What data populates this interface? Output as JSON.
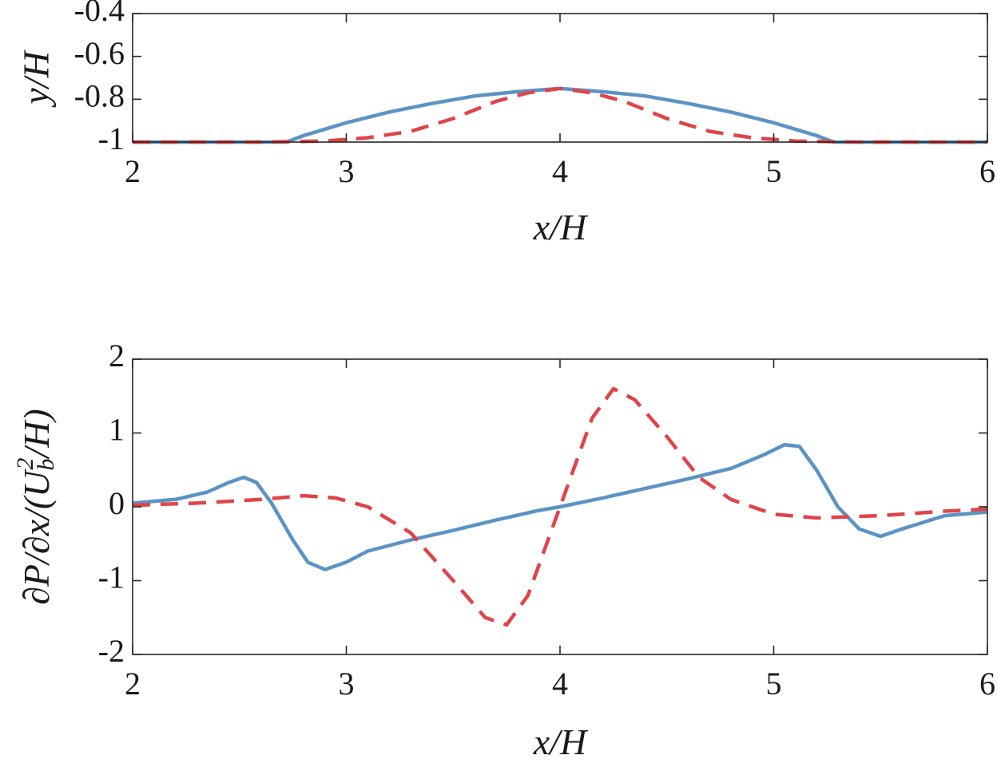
{
  "chart_data": [
    {
      "type": "line",
      "title": "",
      "xlabel": "x/H",
      "ylabel": "y/H",
      "xlim": [
        2,
        6
      ],
      "ylim": [
        -1,
        -0.4
      ],
      "xticks": [
        "2",
        "3",
        "4",
        "5",
        "6"
      ],
      "yticks": [
        "-1",
        "-0.8",
        "-0.6",
        "-0.4"
      ],
      "grid": false,
      "legend": "none",
      "series": [
        {
          "color": "#5b93c4",
          "style": "solid",
          "x": [
            2.0,
            2.5,
            2.72,
            2.8,
            3.0,
            3.2,
            3.4,
            3.6,
            3.8,
            4.0,
            4.2,
            4.4,
            4.6,
            4.8,
            5.0,
            5.2,
            5.28,
            5.5,
            6.0
          ],
          "y": [
            -1.0,
            -1.0,
            -1.0,
            -0.97,
            -0.91,
            -0.86,
            -0.82,
            -0.785,
            -0.765,
            -0.75,
            -0.765,
            -0.785,
            -0.82,
            -0.86,
            -0.91,
            -0.97,
            -1.0,
            -1.0,
            -1.0
          ]
        },
        {
          "color": "#e04448",
          "style": "dashed",
          "x": [
            2.0,
            2.6,
            2.9,
            3.1,
            3.3,
            3.5,
            3.7,
            3.85,
            4.0,
            4.15,
            4.3,
            4.5,
            4.7,
            4.9,
            5.1,
            5.4,
            6.0
          ],
          "y": [
            -1.0,
            -1.0,
            -0.995,
            -0.98,
            -0.95,
            -0.89,
            -0.81,
            -0.77,
            -0.75,
            -0.77,
            -0.81,
            -0.89,
            -0.95,
            -0.98,
            -0.995,
            -1.0,
            -1.0
          ]
        }
      ]
    },
    {
      "type": "line",
      "title": "",
      "xlabel": "x/H",
      "ylabel": "∂P/∂x/(U_b^2/H)",
      "xlim": [
        2,
        6
      ],
      "ylim": [
        -2,
        2
      ],
      "xticks": [
        "2",
        "3",
        "4",
        "5",
        "6"
      ],
      "yticks": [
        "-2",
        "-1",
        "0",
        "1",
        "2"
      ],
      "grid": false,
      "legend": "none",
      "series": [
        {
          "color": "#5b93c4",
          "style": "solid",
          "x": [
            2.0,
            2.2,
            2.35,
            2.45,
            2.52,
            2.58,
            2.65,
            2.75,
            2.82,
            2.9,
            3.0,
            3.1,
            3.3,
            3.5,
            3.7,
            3.9,
            4.0,
            4.2,
            4.4,
            4.6,
            4.8,
            4.95,
            5.05,
            5.12,
            5.2,
            5.3,
            5.4,
            5.5,
            5.6,
            5.8,
            6.0
          ],
          "y": [
            0.05,
            0.1,
            0.2,
            0.33,
            0.4,
            0.33,
            0.05,
            -0.45,
            -0.75,
            -0.85,
            -0.75,
            -0.6,
            -0.45,
            -0.32,
            -0.18,
            -0.05,
            0.0,
            0.12,
            0.25,
            0.38,
            0.52,
            0.7,
            0.84,
            0.82,
            0.5,
            0.0,
            -0.3,
            -0.4,
            -0.3,
            -0.12,
            -0.07
          ]
        },
        {
          "color": "#e04448",
          "style": "dashed",
          "x": [
            2.0,
            2.3,
            2.6,
            2.8,
            2.95,
            3.1,
            3.3,
            3.5,
            3.65,
            3.75,
            3.85,
            4.0,
            4.15,
            4.25,
            4.35,
            4.5,
            4.65,
            4.8,
            5.0,
            5.2,
            5.5,
            5.8,
            6.0
          ],
          "y": [
            0.02,
            0.05,
            0.1,
            0.15,
            0.12,
            0.0,
            -0.35,
            -1.0,
            -1.5,
            -1.6,
            -1.2,
            0.0,
            1.2,
            1.6,
            1.45,
            0.95,
            0.4,
            0.1,
            -0.1,
            -0.15,
            -0.12,
            -0.06,
            -0.03
          ]
        }
      ]
    }
  ]
}
